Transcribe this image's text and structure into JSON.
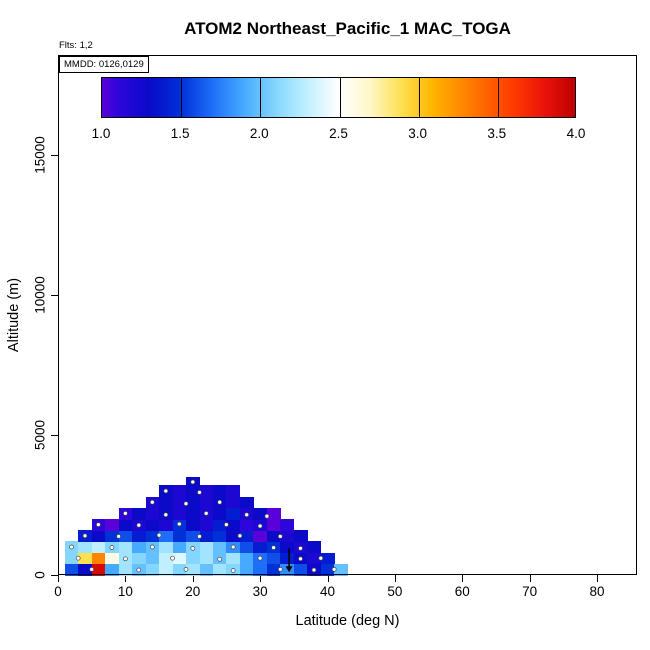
{
  "chart_data": {
    "type": "heatmap",
    "title": "ATOM2 Northeast_Pacific_1 MAC_TOGA",
    "xlabel": "Latitude (deg N)",
    "ylabel": "Altitude (m)",
    "xlim": [
      0,
      86
    ],
    "ylim": [
      0,
      18600
    ],
    "x_ticks": [
      0,
      10,
      20,
      30,
      40,
      50,
      60,
      70,
      80
    ],
    "y_ticks": [
      0,
      5000,
      10000,
      15000
    ],
    "grid": false,
    "annotations": {
      "flights": "Flts: 1,2",
      "mmdd": "MMDD: 0126,0129"
    },
    "colorbar": {
      "orientation": "horizontal",
      "vmin": 1.0,
      "vmax": 4.0,
      "tick_labels": [
        "1.0",
        "1.5",
        "2.0",
        "2.5",
        "3.0",
        "3.5",
        "4.0"
      ],
      "inner_lines": [
        1.5,
        2.0,
        2.5,
        3.0,
        3.5
      ],
      "stops": [
        {
          "v": 1.0,
          "c": "#5A00D8"
        },
        {
          "v": 1.1,
          "c": "#2E06DC"
        },
        {
          "v": 1.3,
          "c": "#0A0AC8"
        },
        {
          "v": 1.5,
          "c": "#0030D8"
        },
        {
          "v": 1.7,
          "c": "#1E6EF8"
        },
        {
          "v": 1.9,
          "c": "#46AAFF"
        },
        {
          "v": 2.1,
          "c": "#84D6FF"
        },
        {
          "v": 2.3,
          "c": "#C0EFFF"
        },
        {
          "v": 2.5,
          "c": "#FFFFFF"
        },
        {
          "v": 2.7,
          "c": "#FFF7C8"
        },
        {
          "v": 2.9,
          "c": "#FFE050"
        },
        {
          "v": 3.1,
          "c": "#FFB400"
        },
        {
          "v": 3.35,
          "c": "#FF7800"
        },
        {
          "v": 3.6,
          "c": "#FF3C00"
        },
        {
          "v": 3.8,
          "c": "#EB140A"
        },
        {
          "v": 4.0,
          "c": "#BE0000"
        }
      ]
    },
    "heatmap": {
      "lat_bin_width": 2,
      "rows": [
        {
          "alt0": 0,
          "alt1": 400,
          "lat_start": 1,
          "values": [
            1.6,
            1.3,
            3.9,
            1.9,
            2.2,
            2.0,
            2.1,
            2.3,
            2.1,
            2.2,
            2.0,
            2.2,
            2.1,
            1.9,
            1.7,
            1.5,
            1.8,
            1.6,
            1.3,
            1.5,
            2.0
          ]
        },
        {
          "alt0": 400,
          "alt1": 800,
          "lat_start": 1,
          "values": [
            2.1,
            2.9,
            3.3,
            2.6,
            2.2,
            2.1,
            2.0,
            2.3,
            2.4,
            2.1,
            2.2,
            2.0,
            2.2,
            1.9,
            1.7,
            1.6,
            1.4,
            1.3,
            1.2,
            1.4
          ]
        },
        {
          "alt0": 800,
          "alt1": 1200,
          "lat_start": 1,
          "values": [
            2.1,
            2.2,
            2.3,
            2.1,
            2.2,
            1.9,
            2.0,
            2.2,
            1.9,
            2.1,
            2.2,
            2.0,
            1.8,
            1.6,
            1.4,
            1.5,
            1.3,
            1.2,
            1.3
          ]
        },
        {
          "alt0": 1200,
          "alt1": 1600,
          "lat_start": 3,
          "values": [
            1.4,
            1.3,
            1.5,
            1.6,
            1.4,
            1.5,
            1.7,
            1.5,
            1.6,
            1.4,
            1.5,
            1.3,
            1.4,
            1.0,
            1.3,
            1.2,
            1.3
          ]
        },
        {
          "alt0": 1600,
          "alt1": 2000,
          "lat_start": 5,
          "values": [
            1.1,
            1.0,
            1.3,
            1.2,
            1.3,
            1.2,
            1.5,
            1.3,
            1.2,
            1.4,
            1.3,
            1.1,
            1.2,
            1.0,
            1.1
          ]
        },
        {
          "alt0": 2000,
          "alt1": 2400,
          "lat_start": 9,
          "values": [
            1.1,
            1.3,
            1.2,
            1.3,
            1.2,
            1.3,
            1.2,
            1.3,
            1.4,
            1.2,
            1.3,
            1.0
          ]
        },
        {
          "alt0": 2400,
          "alt1": 2800,
          "lat_start": 13,
          "values": [
            1.2,
            1.3,
            1.2,
            1.3,
            1.2,
            1.3,
            1.2,
            1.3
          ]
        },
        {
          "alt0": 2800,
          "alt1": 3200,
          "lat_start": 15,
          "values": [
            1.3,
            1.2,
            1.3,
            1.2,
            1.3,
            1.2
          ]
        },
        {
          "alt0": 3200,
          "alt1": 3500,
          "lat_start": 19,
          "values": [
            1.3
          ]
        }
      ]
    },
    "sample_points": [
      [
        20,
        3320
      ],
      [
        16,
        3000
      ],
      [
        21,
        2950
      ],
      [
        14,
        2600
      ],
      [
        19,
        2550
      ],
      [
        24,
        2600
      ],
      [
        10,
        2200
      ],
      [
        16,
        2150
      ],
      [
        22,
        2200
      ],
      [
        28,
        2150
      ],
      [
        31,
        2100
      ],
      [
        6,
        1800
      ],
      [
        12,
        1780
      ],
      [
        18,
        1820
      ],
      [
        25,
        1800
      ],
      [
        30,
        1750
      ],
      [
        4,
        1400
      ],
      [
        9,
        1380
      ],
      [
        15,
        1420
      ],
      [
        21,
        1380
      ],
      [
        27,
        1400
      ],
      [
        33,
        1380
      ],
      [
        2,
        1000
      ],
      [
        8,
        980
      ],
      [
        14,
        1000
      ],
      [
        20,
        950
      ],
      [
        26,
        1000
      ],
      [
        32,
        980
      ],
      [
        36,
        950
      ],
      [
        3,
        600
      ],
      [
        10,
        580
      ],
      [
        17,
        600
      ],
      [
        24,
        560
      ],
      [
        30,
        600
      ],
      [
        36,
        580
      ],
      [
        39,
        600
      ],
      [
        5,
        200
      ],
      [
        12,
        180
      ],
      [
        19,
        200
      ],
      [
        26,
        160
      ],
      [
        33,
        200
      ],
      [
        38,
        180
      ],
      [
        41,
        200
      ]
    ],
    "arrow": {
      "lat": 34.3,
      "alt_top": 950,
      "alt_bottom": 100,
      "color": "#000000"
    },
    "point_style": {
      "fill": "#ffffff",
      "stroke": "#444444"
    }
  }
}
